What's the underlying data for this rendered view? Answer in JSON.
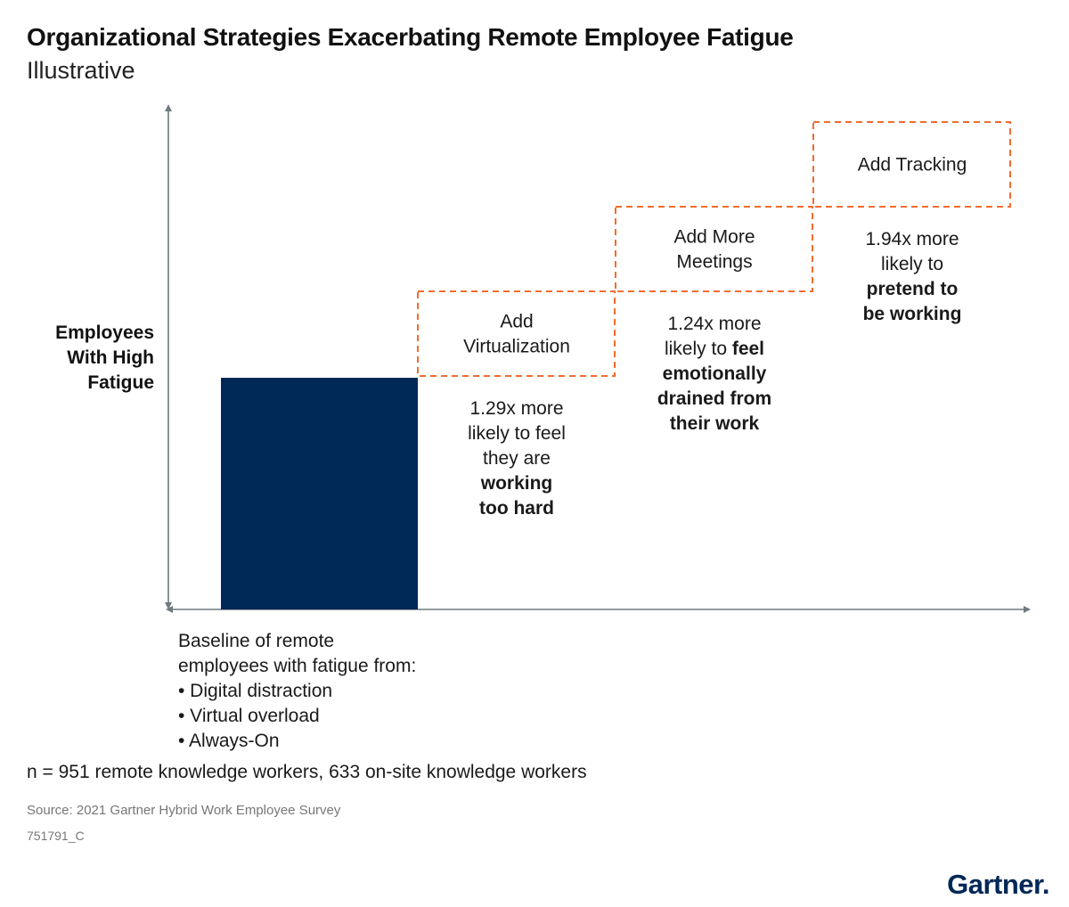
{
  "header": {
    "title": "Organizational Strategies Exacerbating Remote Employee Fatigue",
    "subtitle": "Illustrative"
  },
  "chart_data": {
    "type": "bar",
    "title": "Organizational Strategies Exacerbating Remote Employee Fatigue",
    "subtitle": "Illustrative",
    "ylabel": [
      "Employees",
      "With High",
      "Fatigue"
    ],
    "categories": [
      "Baseline",
      "Add Virtualization",
      "Add More Meetings",
      "Add Tracking"
    ],
    "baseline": {
      "value": 1,
      "label_lines": [
        "Baseline of remote",
        "employees with fatigue from:",
        "• Digital distraction",
        "• Virtual overload",
        "• Always-On"
      ]
    },
    "steps": [
      {
        "label": [
          "Add",
          "Virtualization"
        ],
        "multiplier": 1.29,
        "annotation": [
          [
            {
              "t": "1.29x more",
              "b": false
            }
          ],
          [
            {
              "t": "likely to feel",
              "b": false
            }
          ],
          [
            {
              "t": "they are",
              "b": false
            }
          ],
          [
            {
              "t": "working",
              "b": true
            }
          ],
          [
            {
              "t": "too hard",
              "b": true
            }
          ]
        ]
      },
      {
        "label": [
          "Add More",
          "Meetings"
        ],
        "multiplier": 1.24,
        "annotation": [
          [
            {
              "t": "1.24x more",
              "b": false
            }
          ],
          [
            {
              "t": "likely to ",
              "b": false
            },
            {
              "t": "feel",
              "b": true
            }
          ],
          [
            {
              "t": "emotionally",
              "b": true
            }
          ],
          [
            {
              "t": "drained from",
              "b": true
            }
          ],
          [
            {
              "t": "their work",
              "b": true
            }
          ]
        ]
      },
      {
        "label": [
          "Add Tracking"
        ],
        "multiplier": 1.94,
        "annotation": [
          [
            {
              "t": "1.94x more",
              "b": false
            }
          ],
          [
            {
              "t": "likely to",
              "b": false
            }
          ],
          [
            {
              "t": "pretend to",
              "b": true
            }
          ],
          [
            {
              "t": "be working",
              "b": true
            }
          ]
        ]
      }
    ],
    "colors": {
      "baseline_bar": "#002856",
      "step_border": "#f26c2f",
      "axis": "#6e7a7c"
    },
    "grid": false,
    "legend": "none"
  },
  "footer": {
    "note": "n = 951 remote knowledge workers, 633 on-site knowledge workers",
    "source": "Source: 2021 Gartner Hybrid Work Employee Survey",
    "doc_id": "751791_C",
    "logo": "Gartner."
  }
}
